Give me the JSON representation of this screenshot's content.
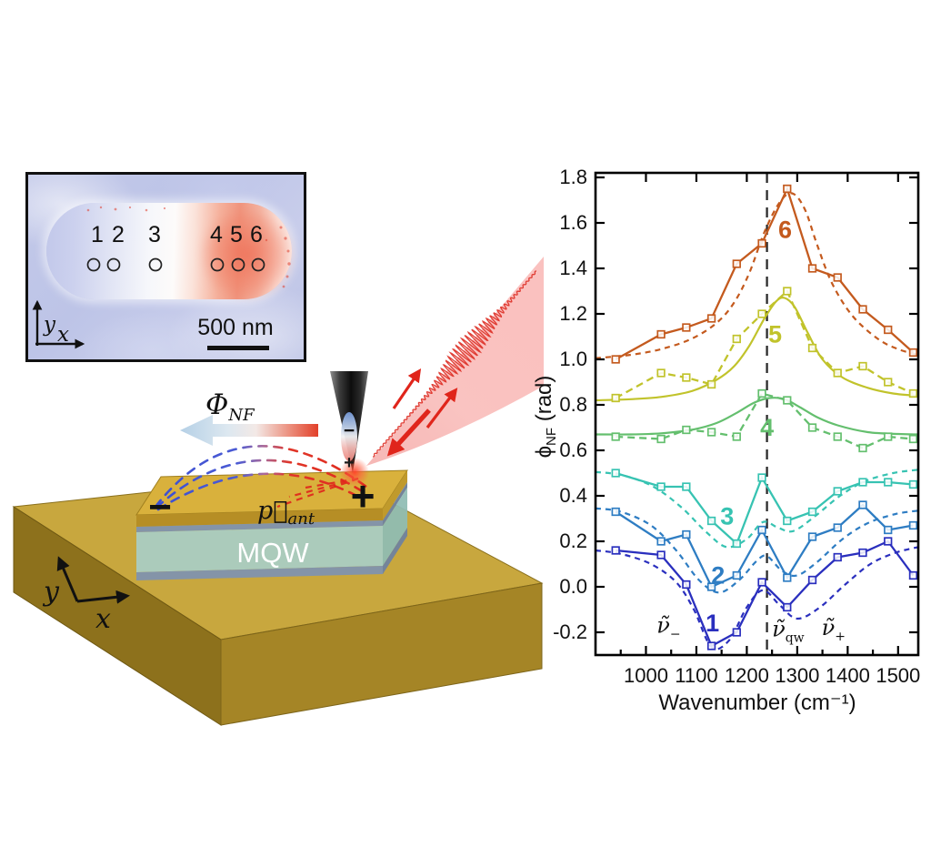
{
  "inset": {
    "points": [
      {
        "label": "1"
      },
      {
        "label": "2"
      },
      {
        "label": "3"
      },
      {
        "label": "4"
      },
      {
        "label": "5"
      },
      {
        "label": "6"
      }
    ],
    "scale_label": "500 nm",
    "axis_x": "x",
    "axis_y": "y"
  },
  "schematic": {
    "phi_base": "Φ",
    "phi_sub": "NF",
    "p_base": "p⃗",
    "p_sub": "ant",
    "mqw_label": "MQW",
    "antenna_minus": "−",
    "antenna_plus": "+",
    "tip_minus": "−",
    "tip_plus": "+",
    "axis_x": "x",
    "axis_y": "y",
    "colors": {
      "gold_top": "#c8a73e",
      "gold_front_left": "#8d711c",
      "gold_front_right": "#a58526",
      "antenna_gold": "#d9b13c",
      "mqw_teal": "#a9cec5",
      "spacer_gray": "#8494a8",
      "laser_red": "#e0251b"
    }
  },
  "chart_data": {
    "type": "line",
    "title": "",
    "xlabel": "Wavenumber (cm⁻¹)",
    "ylabel": {
      "base": "ϕ",
      "sub": "NF",
      "rest": " (rad)"
    },
    "xlim": [
      900,
      1540
    ],
    "ylim": [
      -0.3,
      1.82
    ],
    "x_major_ticks": [
      1000,
      1100,
      1200,
      1300,
      1400,
      1500
    ],
    "x_minor_ticks": [
      950,
      1050,
      1150,
      1250,
      1350,
      1450
    ],
    "y_major_ticks": [
      -0.2,
      0.0,
      0.2,
      0.4,
      0.6,
      0.8,
      1.0,
      1.2,
      1.4,
      1.6,
      1.8
    ],
    "grid": false,
    "legend_position": "none",
    "vline": {
      "x": 1240,
      "style": "dashed",
      "color": "#2b2b2b"
    },
    "x": [
      940,
      1030,
      1080,
      1130,
      1180,
      1230,
      1280,
      1330,
      1380,
      1430,
      1480,
      1530
    ],
    "series": [
      {
        "id": "position-1",
        "color": "#2a2fbe",
        "marker": "square",
        "marker_line": "solid",
        "fit_line": "dashed",
        "values": [
          0.16,
          0.14,
          0.01,
          -0.26,
          -0.2,
          0.02,
          -0.09,
          0.03,
          0.13,
          0.15,
          0.2,
          0.05
        ],
        "fit": [
          [
            900,
            0.16
          ],
          [
            950,
            0.145
          ],
          [
            1010,
            0.1
          ],
          [
            1060,
            0.02
          ],
          [
            1095,
            -0.1
          ],
          [
            1130,
            -0.265
          ],
          [
            1165,
            -0.235
          ],
          [
            1200,
            -0.09
          ],
          [
            1232,
            -0.015
          ],
          [
            1265,
            -0.08
          ],
          [
            1300,
            -0.14
          ],
          [
            1345,
            -0.09
          ],
          [
            1395,
            0.01
          ],
          [
            1445,
            0.1
          ],
          [
            1495,
            0.15
          ],
          [
            1540,
            0.175
          ]
        ],
        "label": {
          "text": "1",
          "x": 1132,
          "y": -0.16
        }
      },
      {
        "id": "position-2",
        "color": "#2e7dc3",
        "marker": "square",
        "marker_line": "solid",
        "fit_line": "dashed",
        "values": [
          0.33,
          0.2,
          0.23,
          0.0,
          0.05,
          0.25,
          0.04,
          0.22,
          0.26,
          0.36,
          0.25,
          0.27
        ],
        "fit": [
          [
            900,
            0.345
          ],
          [
            950,
            0.33
          ],
          [
            1010,
            0.27
          ],
          [
            1060,
            0.16
          ],
          [
            1105,
            0.03
          ],
          [
            1145,
            -0.025
          ],
          [
            1185,
            0.03
          ],
          [
            1220,
            0.115
          ],
          [
            1240,
            0.135
          ],
          [
            1270,
            0.07
          ],
          [
            1300,
            0.05
          ],
          [
            1340,
            0.11
          ],
          [
            1390,
            0.21
          ],
          [
            1440,
            0.28
          ],
          [
            1495,
            0.32
          ],
          [
            1540,
            0.335
          ]
        ],
        "label": {
          "text": "2",
          "x": 1143,
          "y": 0.05
        }
      },
      {
        "id": "position-3",
        "color": "#37c3b2",
        "marker": "square",
        "marker_line": "solid",
        "fit_line": "dashed",
        "values": [
          0.5,
          0.44,
          0.44,
          0.29,
          0.19,
          0.48,
          0.29,
          0.33,
          0.42,
          0.46,
          0.46,
          0.45
        ],
        "fit": [
          [
            900,
            0.505
          ],
          [
            955,
            0.49
          ],
          [
            1015,
            0.44
          ],
          [
            1070,
            0.35
          ],
          [
            1120,
            0.24
          ],
          [
            1160,
            0.175
          ],
          [
            1200,
            0.21
          ],
          [
            1232,
            0.285
          ],
          [
            1262,
            0.26
          ],
          [
            1292,
            0.245
          ],
          [
            1335,
            0.31
          ],
          [
            1385,
            0.4
          ],
          [
            1435,
            0.465
          ],
          [
            1490,
            0.5
          ],
          [
            1540,
            0.515
          ]
        ],
        "label": {
          "text": "3",
          "x": 1161,
          "y": 0.31
        }
      },
      {
        "id": "position-4",
        "color": "#64bf6e",
        "marker": "square",
        "marker_line": "dashed",
        "fit_line": "solid",
        "values": [
          0.66,
          0.65,
          0.69,
          0.68,
          0.66,
          0.85,
          0.82,
          0.7,
          0.66,
          0.61,
          0.66,
          0.65
        ],
        "fit": [
          [
            900,
            0.67
          ],
          [
            970,
            0.67
          ],
          [
            1030,
            0.675
          ],
          [
            1090,
            0.69
          ],
          [
            1140,
            0.72
          ],
          [
            1180,
            0.765
          ],
          [
            1215,
            0.81
          ],
          [
            1245,
            0.83
          ],
          [
            1275,
            0.825
          ],
          [
            1305,
            0.79
          ],
          [
            1340,
            0.745
          ],
          [
            1380,
            0.71
          ],
          [
            1440,
            0.68
          ],
          [
            1500,
            0.672
          ],
          [
            1540,
            0.67
          ]
        ],
        "label": {
          "text": "4",
          "x": 1240,
          "y": 0.7
        }
      },
      {
        "id": "position-5",
        "color": "#c1c32b",
        "marker": "square",
        "marker_line": "dashed",
        "fit_line": "solid",
        "values": [
          0.83,
          0.94,
          0.92,
          0.89,
          1.09,
          1.2,
          1.3,
          1.05,
          0.94,
          0.97,
          0.9,
          0.85
        ],
        "fit": [
          [
            900,
            0.82
          ],
          [
            970,
            0.825
          ],
          [
            1030,
            0.835
          ],
          [
            1090,
            0.86
          ],
          [
            1140,
            0.91
          ],
          [
            1175,
            0.97
          ],
          [
            1205,
            1.06
          ],
          [
            1235,
            1.18
          ],
          [
            1258,
            1.255
          ],
          [
            1275,
            1.27
          ],
          [
            1295,
            1.23
          ],
          [
            1320,
            1.12
          ],
          [
            1350,
            1.0
          ],
          [
            1390,
            0.92
          ],
          [
            1440,
            0.875
          ],
          [
            1490,
            0.85
          ],
          [
            1540,
            0.84
          ]
        ],
        "label": {
          "text": "5",
          "x": 1256,
          "y": 1.11
        }
      },
      {
        "id": "position-6",
        "color": "#c45a1e",
        "marker": "square",
        "marker_line": "solid",
        "fit_line": "dashed",
        "values": [
          1.0,
          1.11,
          1.14,
          1.18,
          1.42,
          1.51,
          1.75,
          1.4,
          1.36,
          1.22,
          1.13,
          1.03
        ],
        "fit": [
          [
            900,
            1.005
          ],
          [
            970,
            1.02
          ],
          [
            1030,
            1.045
          ],
          [
            1090,
            1.09
          ],
          [
            1140,
            1.16
          ],
          [
            1175,
            1.25
          ],
          [
            1205,
            1.38
          ],
          [
            1235,
            1.56
          ],
          [
            1265,
            1.69
          ],
          [
            1290,
            1.73
          ],
          [
            1315,
            1.66
          ],
          [
            1340,
            1.5
          ],
          [
            1370,
            1.33
          ],
          [
            1410,
            1.19
          ],
          [
            1460,
            1.09
          ],
          [
            1500,
            1.045
          ],
          [
            1540,
            1.02
          ]
        ],
        "label": {
          "text": "6",
          "x": 1276,
          "y": 1.57
        }
      }
    ],
    "annotations": [
      {
        "base": "ν̃",
        "sub": "−",
        "x": 1045,
        "y": -0.17
      },
      {
        "base": "ν̃",
        "sub": "qw",
        "x": 1282,
        "y": -0.185
      },
      {
        "base": "ν̃",
        "sub": "+",
        "x": 1372,
        "y": -0.18
      }
    ]
  }
}
